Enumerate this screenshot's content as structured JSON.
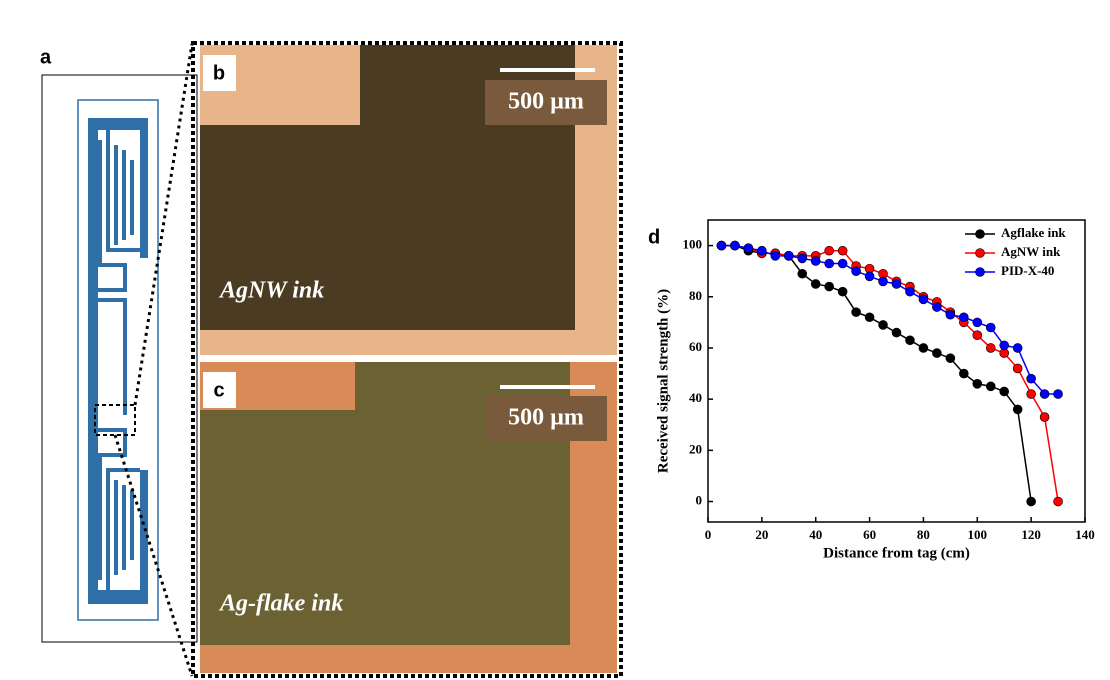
{
  "schematic": {
    "label": "a"
  },
  "micrographs": [
    {
      "label": "b",
      "caption": "AgNW ink",
      "scale_bar": "500 µm"
    },
    {
      "label": "c",
      "caption": "Ag-flake ink",
      "scale_bar": "500 µm"
    }
  ],
  "chart_data": {
    "type": "line",
    "label": "d",
    "xlabel": "Distance from tag (cm)",
    "ylabel": "Received signal strength (%)",
    "xlim": [
      0,
      140
    ],
    "xticks": [
      0,
      20,
      40,
      60,
      80,
      100,
      120,
      140
    ],
    "ylim": [
      -8,
      110
    ],
    "yticks": [
      0,
      20,
      40,
      60,
      80,
      100
    ],
    "legend": "upper right",
    "series": [
      {
        "name": "Agflake ink",
        "color": "#000000",
        "x": [
          5,
          10,
          15,
          20,
          25,
          30,
          35,
          40,
          45,
          50,
          55,
          60,
          65,
          70,
          75,
          80,
          85,
          90,
          95,
          100,
          105,
          110,
          115,
          120
        ],
        "values": [
          100,
          100,
          98,
          97,
          97,
          96,
          89,
          85,
          84,
          82,
          74,
          72,
          69,
          66,
          63,
          60,
          58,
          56,
          50,
          46,
          45,
          43,
          36,
          0
        ]
      },
      {
        "name": "AgNW ink",
        "color": "#ff0000",
        "x": [
          5,
          10,
          15,
          20,
          25,
          30,
          35,
          40,
          45,
          50,
          55,
          60,
          65,
          70,
          75,
          80,
          85,
          90,
          95,
          100,
          105,
          110,
          115,
          120,
          125,
          130
        ],
        "values": [
          100,
          100,
          99,
          97,
          97,
          96,
          96,
          96,
          98,
          98,
          92,
          91,
          89,
          86,
          84,
          80,
          78,
          74,
          70,
          65,
          60,
          58,
          52,
          42,
          33,
          0
        ]
      },
      {
        "name": "PID-X-40",
        "color": "#0000ff",
        "x": [
          5,
          10,
          15,
          20,
          25,
          30,
          35,
          40,
          45,
          50,
          55,
          60,
          65,
          70,
          75,
          80,
          85,
          90,
          95,
          100,
          105,
          110,
          115,
          120,
          125,
          130
        ],
        "values": [
          100,
          100,
          99,
          98,
          96,
          96,
          95,
          94,
          93,
          93,
          90,
          88,
          86,
          85,
          82,
          79,
          76,
          73,
          72,
          70,
          68,
          61,
          60,
          48,
          42,
          42
        ]
      }
    ]
  }
}
